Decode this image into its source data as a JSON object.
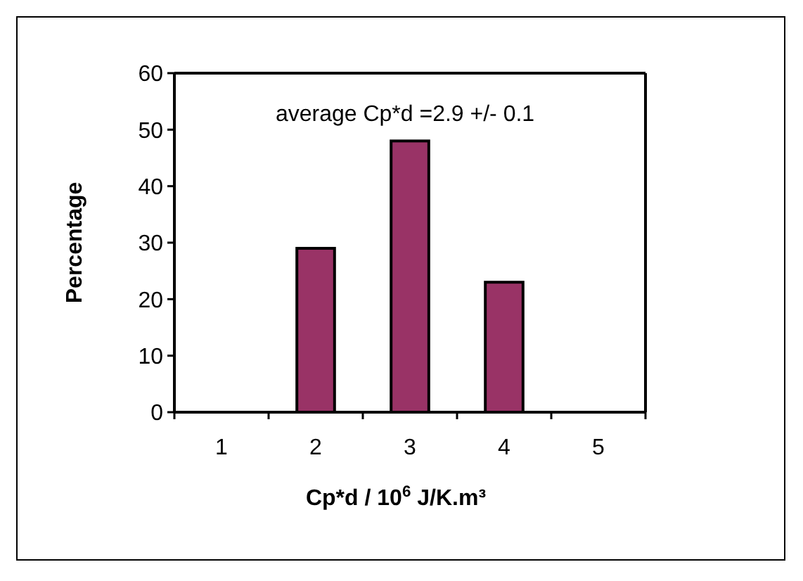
{
  "chart_data": {
    "type": "bar",
    "xlabel": "Cp*d / 10$^{6}$ J/K.m³",
    "ylabel": "Percentage",
    "annotations": [
      "average Cp*d =2.9 +/- 0.1"
    ],
    "categories": [
      "1",
      "2",
      "3",
      "4",
      "5"
    ],
    "values": [
      0,
      29,
      48,
      23,
      0
    ],
    "color": "#993366",
    "ylim": [
      0,
      60
    ],
    "yticks": [
      0,
      10,
      20,
      30,
      40,
      50,
      60
    ],
    "grid": false
  }
}
